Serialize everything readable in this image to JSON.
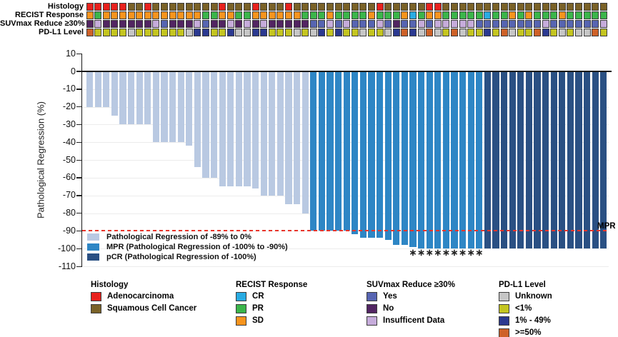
{
  "chart_data": {
    "type": "bar",
    "title": "",
    "ylabel": "Pathological Regression (%)",
    "ylim": [
      -110,
      10
    ],
    "yticks": [
      10,
      0,
      -10,
      -20,
      -30,
      -40,
      -50,
      -60,
      -70,
      -80,
      -90,
      -100,
      -110
    ],
    "n_patients": 63,
    "values": [
      -20,
      -20,
      -20,
      -25,
      -30,
      -30,
      -30,
      -30,
      -40,
      -40,
      -40,
      -40,
      -42,
      -54,
      -60,
      -60,
      -65,
      -65,
      -65,
      -65,
      -66,
      -70,
      -70,
      -70,
      -75,
      -75,
      -80,
      -90,
      -90,
      -90,
      -90,
      -90,
      -92,
      -94,
      -94,
      -94,
      -95,
      -98,
      -98,
      -99,
      -100,
      -100,
      -100,
      -100,
      -100,
      -100,
      -100,
      -100,
      -100,
      -100,
      -100,
      -100,
      -100,
      -100,
      -100,
      -100,
      -100,
      -100,
      -100,
      -100,
      -100,
      -100,
      -100
    ],
    "groups": [
      "reg",
      "reg",
      "reg",
      "reg",
      "reg",
      "reg",
      "reg",
      "reg",
      "reg",
      "reg",
      "reg",
      "reg",
      "reg",
      "reg",
      "reg",
      "reg",
      "reg",
      "reg",
      "reg",
      "reg",
      "reg",
      "reg",
      "reg",
      "reg",
      "reg",
      "reg",
      "reg",
      "mpr",
      "mpr",
      "mpr",
      "mpr",
      "mpr",
      "mpr",
      "mpr",
      "mpr",
      "mpr",
      "mpr",
      "mpr",
      "mpr",
      "mpr",
      "mpr",
      "mpr",
      "mpr",
      "mpr",
      "mpr",
      "mpr",
      "mpr",
      "mpr",
      "pcr",
      "pcr",
      "pcr",
      "pcr",
      "pcr",
      "pcr",
      "pcr",
      "pcr",
      "pcr",
      "pcr",
      "pcr",
      "pcr",
      "pcr",
      "pcr",
      "pcr"
    ],
    "group_info": {
      "reg": {
        "label": "Pathological Regression of -89% to 0%",
        "color": "#B9C9E2"
      },
      "mpr": {
        "label": "MPR (Pathological Regression of -100% to -90%)",
        "color": "#2E86C5"
      },
      "pcr": {
        "label": "pCR (Pathological Regression of -100%)",
        "color": "#2A5083"
      }
    },
    "reference_line": {
      "value": -90,
      "label": "MPR",
      "color": "#E8352B",
      "style": "dashed"
    },
    "asterisk_bars": [
      40,
      41,
      42,
      43,
      44,
      45,
      46,
      47,
      48
    ],
    "asterisk_symbol": "∗",
    "grid": true,
    "legend_position": "inside-bottom-left"
  },
  "tracks": {
    "rows": [
      {
        "key": "histology",
        "label": "Histology",
        "values": [
          "A",
          "A",
          "A",
          "A",
          "A",
          "S",
          "S",
          "A",
          "S",
          "S",
          "S",
          "S",
          "S",
          "S",
          "S",
          "S",
          "A",
          "S",
          "S",
          "S",
          "A",
          "S",
          "S",
          "S",
          "A",
          "S",
          "S",
          "S",
          "S",
          "S",
          "S",
          "S",
          "S",
          "S",
          "S",
          "A",
          "S",
          "S",
          "S",
          "S",
          "S",
          "A",
          "A",
          "S",
          "S",
          "S",
          "S",
          "S",
          "S",
          "S",
          "S",
          "S",
          "S",
          "S",
          "S",
          "S",
          "S",
          "S",
          "S",
          "S",
          "S",
          "S",
          "S"
        ]
      },
      {
        "key": "recist",
        "label": "RECIST Response",
        "values": [
          "S",
          "P",
          "S",
          "S",
          "S",
          "S",
          "S",
          "S",
          "S",
          "S",
          "S",
          "S",
          "S",
          "S",
          "P",
          "P",
          "S",
          "S",
          "P",
          "P",
          "S",
          "S",
          "S",
          "S",
          "S",
          "S",
          "P",
          "P",
          "P",
          "S",
          "P",
          "P",
          "P",
          "P",
          "S",
          "P",
          "P",
          "P",
          "S",
          "C",
          "P",
          "S",
          "S",
          "P",
          "P",
          "P",
          "P",
          "P",
          "C",
          "P",
          "P",
          "S",
          "P",
          "S",
          "P",
          "P",
          "P",
          "S",
          "P",
          "P",
          "P",
          "P",
          "P"
        ]
      },
      {
        "key": "suvmax",
        "label": "SUVmax Reduce ≥30%",
        "values": [
          "N",
          "I",
          "N",
          "N",
          "N",
          "N",
          "N",
          "N",
          "I",
          "Y",
          "N",
          "N",
          "N",
          "I",
          "Y",
          "N",
          "N",
          "I",
          "N",
          "I",
          "N",
          "I",
          "N",
          "N",
          "N",
          "N",
          "N",
          "Y",
          "Y",
          "I",
          "Y",
          "I",
          "Y",
          "Y",
          "Y",
          "I",
          "Y",
          "N",
          "Y",
          "Y",
          "I",
          "Y",
          "I",
          "I",
          "I",
          "I",
          "I",
          "Y",
          "Y",
          "Y",
          "Y",
          "Y",
          "Y",
          "Y",
          "Y",
          "I",
          "Y",
          "Y",
          "Y",
          "Y",
          "Y",
          "Y",
          "I"
        ]
      },
      {
        "key": "pdl1",
        "label": "PD-L1 Level",
        "values": [
          "H",
          "L",
          "L",
          "L",
          "L",
          "U",
          "L",
          "L",
          "L",
          "L",
          "L",
          "L",
          "U",
          "M",
          "M",
          "L",
          "L",
          "M",
          "U",
          "U",
          "M",
          "M",
          "L",
          "L",
          "L",
          "U",
          "L",
          "U",
          "M",
          "L",
          "M",
          "L",
          "L",
          "U",
          "L",
          "L",
          "U",
          "M",
          "H",
          "M",
          "U",
          "H",
          "U",
          "L",
          "H",
          "U",
          "L",
          "L",
          "M",
          "L",
          "H",
          "U",
          "L",
          "L",
          "H",
          "M",
          "L",
          "U",
          "L",
          "U",
          "U",
          "H",
          "L"
        ]
      }
    ],
    "palettes": {
      "histology": {
        "A": "#E8221E",
        "S": "#7A6228"
      },
      "recist": {
        "C": "#29ABE2",
        "P": "#3BB54A",
        "S": "#F7941D"
      },
      "suvmax": {
        "Y": "#5765B2",
        "N": "#522562",
        "I": "#C6ACDB"
      },
      "pdl1": {
        "U": "#C6C6C6",
        "L": "#C4C520",
        "M": "#2B3990",
        "H": "#CE6128"
      }
    }
  },
  "legend_groups": [
    {
      "title": "Histology",
      "items": [
        {
          "label": "Adenocarcinoma",
          "color": "#E8221E"
        },
        {
          "label": "Squamous Cell Cancer",
          "color": "#7A6228"
        }
      ]
    },
    {
      "title": "RECIST Response",
      "items": [
        {
          "label": "CR",
          "color": "#29ABE2"
        },
        {
          "label": "PR",
          "color": "#3BB54A"
        },
        {
          "label": "SD",
          "color": "#F7941D"
        }
      ]
    },
    {
      "title": "SUVmax Reduce ≥30%",
      "items": [
        {
          "label": "Yes",
          "color": "#5765B2"
        },
        {
          "label": "No",
          "color": "#522562"
        },
        {
          "label": "Insufficent Data",
          "color": "#C6ACDB"
        }
      ]
    },
    {
      "title": "PD-L1 Level",
      "items": [
        {
          "label": "Unknown",
          "color": "#C6C6C6"
        },
        {
          "label": "<1%",
          "color": "#C4C520"
        },
        {
          "label": "1% - 49%",
          "color": "#2B3990"
        },
        {
          "label": ">=50%",
          "color": "#CE6128"
        }
      ]
    }
  ]
}
